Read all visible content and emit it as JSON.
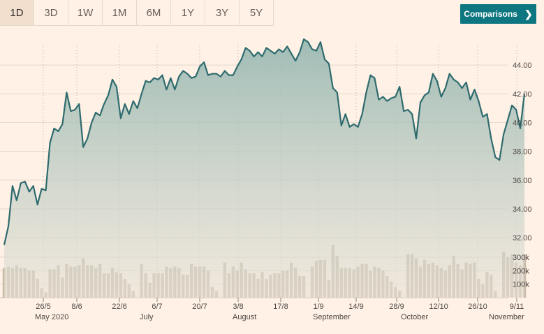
{
  "tabs": [
    {
      "label": "1D",
      "active": true
    },
    {
      "label": "3D",
      "active": false
    },
    {
      "label": "1W",
      "active": false
    },
    {
      "label": "1M",
      "active": false
    },
    {
      "label": "6M",
      "active": false
    },
    {
      "label": "1Y",
      "active": false
    },
    {
      "label": "3Y",
      "active": false
    },
    {
      "label": "5Y",
      "active": false
    }
  ],
  "comparisons_label": "Comparisons",
  "colors": {
    "line": "#2e6b6e",
    "volume": "#c9b8a6",
    "background": "#fff1e5",
    "button": "#0d7680"
  },
  "chart_data": {
    "type": "line",
    "price_axis": {
      "ticks": [
        "32.00",
        "34.00",
        "36.00",
        "38.00",
        "40.00",
        "42.00",
        "44.00"
      ],
      "range": [
        31,
        46
      ]
    },
    "volume_axis": {
      "ticks": [
        "100k",
        "200k",
        "300k"
      ],
      "range": [
        0,
        380000
      ]
    },
    "x_day_ticks": [
      "26/5",
      "8/6",
      "22/6",
      "6/7",
      "20/7",
      "3/8",
      "17/8",
      "1/9",
      "14/9",
      "28/9",
      "12/10",
      "26/10",
      "9/11"
    ],
    "x_month_labels": [
      "May 2020",
      "July",
      "August",
      "September",
      "October",
      "November"
    ],
    "series": [
      {
        "values": [
          31.5,
          32.8,
          35.6,
          34.6,
          35.8,
          35.9,
          35.2,
          35.6,
          34.3,
          35.4,
          35.3,
          38.6,
          39.6,
          39.4,
          39.9,
          42.1,
          40.8,
          40.9,
          41.3,
          38.3,
          38.9,
          40.0,
          40.7,
          40.5,
          41.3,
          41.9,
          43.0,
          42.5,
          40.3,
          41.3,
          40.6,
          41.5,
          41.0,
          42.0,
          42.9,
          42.8,
          43.1,
          43.0,
          43.3,
          42.3,
          43.1,
          42.3,
          43.2,
          43.6,
          43.4,
          43.1,
          43.2,
          43.9,
          44.2,
          43.3,
          43.4,
          43.4,
          43.2,
          43.6,
          43.3,
          43.3,
          43.9,
          44.4,
          45.2,
          45.0,
          44.6,
          44.9,
          44.6,
          45.2,
          45.0,
          44.8,
          45.1,
          44.9,
          45.3,
          44.8,
          44.3,
          44.9,
          45.8,
          45.6,
          45.1,
          45.0,
          45.6,
          44.4,
          44.1,
          42.4,
          42.1,
          39.8,
          40.6,
          39.7,
          39.9,
          39.7,
          40.6,
          42.1,
          43.3,
          43.1,
          41.6,
          41.8,
          41.5,
          41.7,
          41.8,
          42.5,
          40.8,
          40.9,
          40.6,
          38.9,
          41.4,
          41.9,
          42.1,
          43.4,
          42.9,
          41.8,
          42.4,
          43.4,
          43.0,
          42.8,
          42.4,
          42.8,
          41.6,
          42.3,
          41.5,
          40.4,
          40.6,
          38.9,
          37.6,
          37.4,
          39.2,
          40.2,
          41.2,
          40.9,
          39.6,
          42.0
        ],
        "volume": [
          220000,
          230000,
          220000,
          240000,
          220000,
          220000,
          200000,
          200000,
          140000,
          70000,
          40000,
          210000,
          210000,
          240000,
          150000,
          250000,
          230000,
          230000,
          240000,
          290000,
          240000,
          240000,
          220000,
          250000,
          180000,
          180000,
          220000,
          190000,
          180000,
          140000,
          100000,
          50000,
          0,
          250000,
          180000,
          110000,
          180000,
          180000,
          180000,
          230000,
          220000,
          230000,
          220000,
          170000,
          170000,
          250000,
          230000,
          230000,
          230000,
          200000,
          80000,
          50000,
          0,
          260000,
          180000,
          230000,
          200000,
          260000,
          210000,
          180000,
          180000,
          140000,
          190000,
          140000,
          170000,
          180000,
          180000,
          200000,
          200000,
          260000,
          220000,
          160000,
          160000,
          0,
          230000,
          270000,
          280000,
          280000,
          130000,
          390000,
          310000,
          220000,
          220000,
          220000,
          210000,
          230000,
          250000,
          250000,
          200000,
          230000,
          220000,
          200000,
          160000,
          120000,
          80000,
          50000,
          0,
          320000,
          320000,
          290000,
          230000,
          280000,
          250000,
          260000,
          240000,
          220000,
          200000,
          240000,
          310000,
          250000,
          210000,
          260000,
          250000,
          260000,
          140000,
          100000,
          190000,
          170000,
          50000,
          0,
          340000,
          300000,
          320000,
          260000,
          240000,
          320000
        ]
      }
    ]
  }
}
